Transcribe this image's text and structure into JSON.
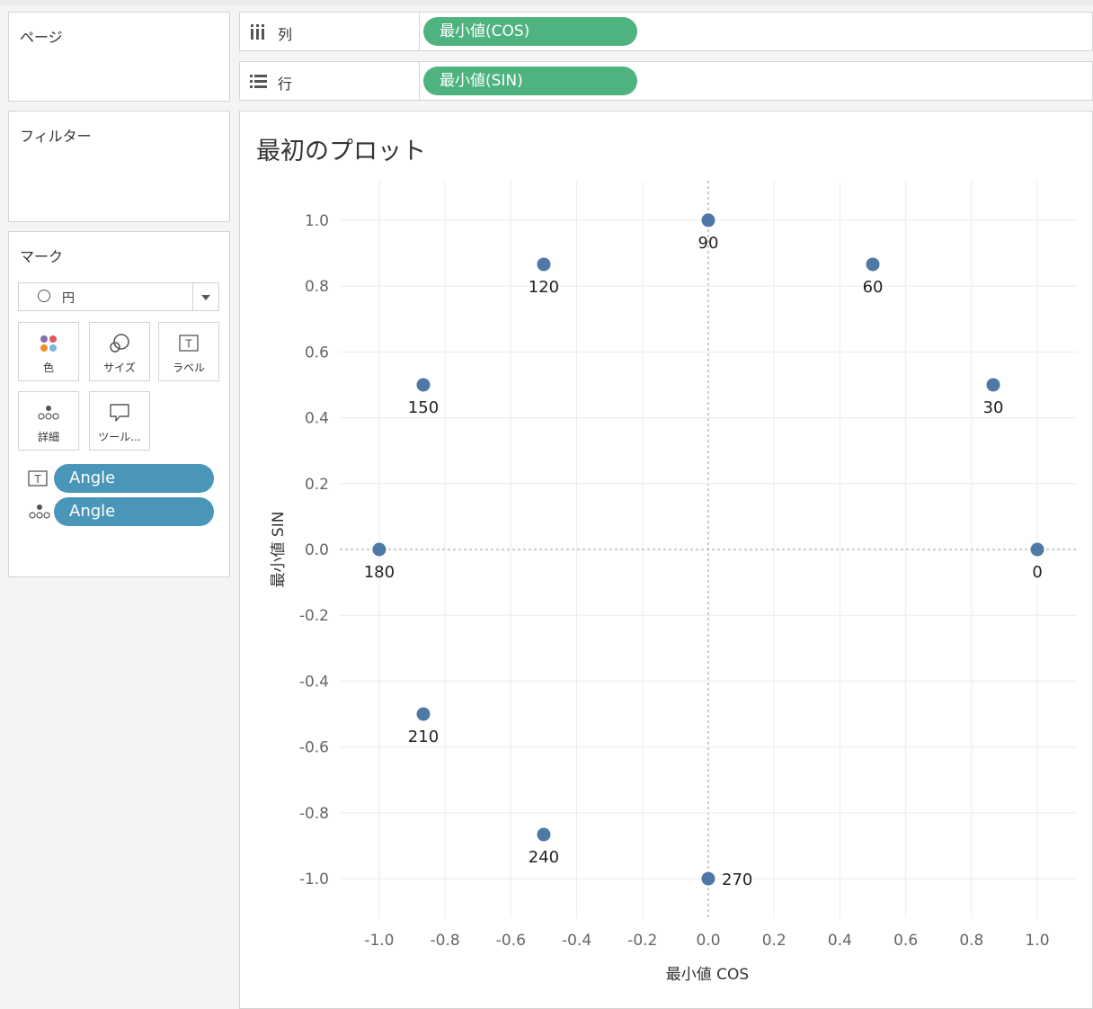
{
  "sidebar": {
    "pages_title": "ページ",
    "filters_title": "フィルター",
    "marks_title": "マーク",
    "mark_type": "円",
    "mark_buttons": [
      {
        "label": "色",
        "icon": "color-dots-icon"
      },
      {
        "label": "サイズ",
        "icon": "size-circles-icon"
      },
      {
        "label": "ラベル",
        "icon": "text-label-icon"
      },
      {
        "label": "詳細",
        "icon": "detail-dots-icon"
      },
      {
        "label": "ツール...",
        "icon": "tooltip-bubble-icon"
      }
    ],
    "mark_fields": [
      {
        "label": "Angle",
        "icon": "text-label-icon"
      },
      {
        "label": "Angle",
        "icon": "detail-dots-icon"
      }
    ]
  },
  "shelves": {
    "columns": {
      "label": "列",
      "pill": "最小値(COS)",
      "icon": "columns-icon"
    },
    "rows": {
      "label": "行",
      "pill": "最小値(SIN)",
      "icon": "rows-icon"
    }
  },
  "colors": {
    "pill_green": "#4fb380",
    "pill_blue": "#4a96b8",
    "point": "#4e79a7"
  },
  "chart_data": {
    "type": "scatter",
    "title": "最初のプロット",
    "xlabel": "最小値 COS",
    "ylabel": "最小値 SIN",
    "xlim": [
      -1.12,
      1.12
    ],
    "ylim": [
      -1.12,
      1.12
    ],
    "xticks": [
      "-1.0",
      "-0.8",
      "-0.6",
      "-0.4",
      "-0.2",
      "0.0",
      "0.2",
      "0.4",
      "0.6",
      "0.8",
      "1.0"
    ],
    "yticks": [
      "1.0",
      "0.8",
      "0.6",
      "0.4",
      "0.2",
      "0.0",
      "-0.2",
      "-0.4",
      "-0.6",
      "-0.8",
      "-1.0"
    ],
    "grid": true,
    "points": [
      {
        "label": "0",
        "x": 1.0,
        "y": 0.0
      },
      {
        "label": "30",
        "x": 0.866,
        "y": 0.5
      },
      {
        "label": "60",
        "x": 0.5,
        "y": 0.866
      },
      {
        "label": "90",
        "x": 0.0,
        "y": 1.0
      },
      {
        "label": "120",
        "x": -0.5,
        "y": 0.866
      },
      {
        "label": "150",
        "x": -0.866,
        "y": 0.5
      },
      {
        "label": "180",
        "x": -1.0,
        "y": 0.0
      },
      {
        "label": "210",
        "x": -0.866,
        "y": -0.5
      },
      {
        "label": "240",
        "x": -0.5,
        "y": -0.866
      },
      {
        "label": "270",
        "x": 0.0,
        "y": -1.0
      }
    ]
  }
}
